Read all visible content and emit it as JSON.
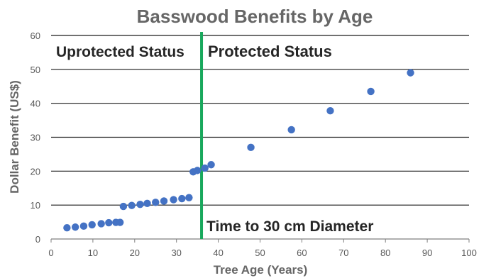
{
  "chart_data": {
    "type": "scatter",
    "title": "Basswood Benefits by Age",
    "xlabel": "Tree Age (Years)",
    "ylabel": "Dollar Benefit (US$)",
    "xlim": [
      0,
      100
    ],
    "ylim": [
      0,
      60
    ],
    "x_ticks": [
      "0",
      "10",
      "20",
      "30",
      "40",
      "50",
      "60",
      "70",
      "80",
      "90",
      "100"
    ],
    "y_ticks": [
      "0",
      "10",
      "20",
      "30",
      "40",
      "50",
      "60"
    ],
    "grid": "horizontal",
    "series": [
      {
        "color": "#4472c4",
        "points": [
          [
            3.8,
            3.3
          ],
          [
            5.8,
            3.5
          ],
          [
            7.8,
            3.8
          ],
          [
            9.8,
            4.2
          ],
          [
            12.0,
            4.5
          ],
          [
            13.8,
            4.8
          ],
          [
            15.5,
            4.9
          ],
          [
            16.5,
            4.9
          ],
          [
            17.3,
            9.6
          ],
          [
            19.3,
            9.9
          ],
          [
            21.3,
            10.2
          ],
          [
            23.0,
            10.5
          ],
          [
            25.0,
            10.8
          ],
          [
            27.0,
            11.2
          ],
          [
            29.3,
            11.6
          ],
          [
            31.3,
            11.9
          ],
          [
            33.0,
            12.2
          ],
          [
            34.0,
            19.8
          ],
          [
            35.0,
            20.2
          ],
          [
            36.8,
            20.9
          ],
          [
            38.3,
            21.9
          ],
          [
            47.8,
            27.0
          ],
          [
            57.5,
            32.2
          ],
          [
            66.8,
            37.8
          ],
          [
            76.5,
            43.5
          ],
          [
            86.0,
            49.0
          ]
        ]
      }
    ],
    "threshold": {
      "x": 36,
      "color": "#18a85c"
    },
    "annotations": {
      "left": "Uprotected Status",
      "right": "Protected Status",
      "bottom": "Time to 30 cm Diameter"
    }
  }
}
